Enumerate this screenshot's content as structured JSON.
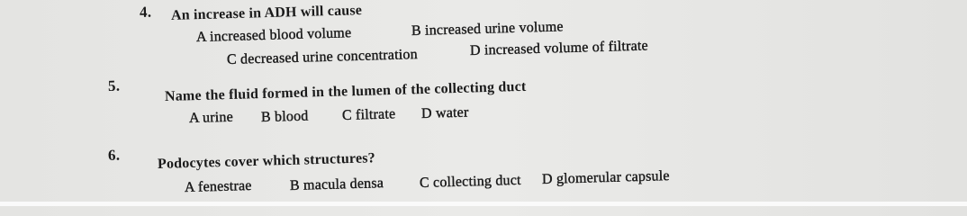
{
  "questions": [
    {
      "number": "4.",
      "text": "An increase in ADH will cause",
      "options": [
        {
          "letter": "A",
          "text": "increased blood volume"
        },
        {
          "letter": "B",
          "text": "increased urine volume"
        },
        {
          "letter": "C",
          "text": "decreased urine concentration"
        },
        {
          "letter": "D",
          "text": "increased volume of filtrate"
        }
      ]
    },
    {
      "number": "5.",
      "text": "Name the fluid formed in the lumen of the collecting duct",
      "options": [
        {
          "letter": "A",
          "text": "urine"
        },
        {
          "letter": "B",
          "text": "blood"
        },
        {
          "letter": "C",
          "text": "filtrate"
        },
        {
          "letter": "D",
          "text": "water"
        }
      ]
    },
    {
      "number": "6.",
      "text": "Podocytes cover which structures?",
      "options": [
        {
          "letter": "A",
          "text": "fenestrae"
        },
        {
          "letter": "B",
          "text": "macula densa"
        },
        {
          "letter": "C",
          "text": "collecting duct"
        },
        {
          "letter": "D",
          "text": "glomerular capsule"
        }
      ]
    }
  ]
}
